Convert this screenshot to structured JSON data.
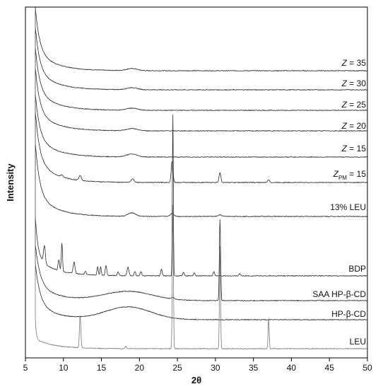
{
  "chart_data": {
    "type": "line",
    "xlabel": "2θ",
    "ylabel": "Intensity",
    "xlim": [
      5,
      50
    ],
    "x_ticks": [
      "5",
      "10",
      "15",
      "20",
      "25",
      "30",
      "35",
      "40",
      "45",
      "50"
    ],
    "y_ticks_shown": false,
    "grid": false,
    "style": {
      "axis_color": "#000000",
      "trace_color": "#2a2a2a",
      "leu_color": "#777777"
    },
    "series": [
      {
        "key": "z35",
        "name_prefix": "Z",
        "name_suffix": " = 35",
        "baseline": 98,
        "peaks": [
          [
            19.0,
            3,
            0.7
          ]
        ]
      },
      {
        "key": "z30",
        "name_prefix": "Z",
        "name_suffix": " = 30",
        "baseline": 98,
        "peaks": [
          [
            19.0,
            3,
            0.7
          ]
        ]
      },
      {
        "key": "z25",
        "name_prefix": "Z",
        "name_suffix": " = 25",
        "baseline": 98,
        "peaks": [
          [
            19.0,
            3,
            0.7
          ]
        ]
      },
      {
        "key": "z20",
        "name_prefix": "Z",
        "name_suffix": " = 20",
        "baseline": 98,
        "peaks": [
          [
            19.0,
            3,
            0.7
          ]
        ]
      },
      {
        "key": "z15",
        "name_prefix": "Z",
        "name_suffix": " = 15",
        "baseline": 98,
        "peaks": [
          [
            19.0,
            4,
            0.7
          ]
        ]
      },
      {
        "key": "zpm15",
        "name_prefix": "Z",
        "name_sub": "PM",
        "name_suffix": " = 15",
        "baseline": 90,
        "peaks": [
          [
            9.8,
            3,
            0.15
          ],
          [
            12.2,
            7,
            0.15
          ],
          [
            19.1,
            5,
            0.2
          ],
          [
            24.3,
            30,
            0.12
          ],
          [
            30.6,
            14,
            0.12
          ],
          [
            37.0,
            4,
            0.12
          ]
        ]
      },
      {
        "key": "leu13",
        "name_prefix": "",
        "name_suffix": "13% LEU",
        "baseline": 90,
        "peaks": [
          [
            19.0,
            5,
            0.5
          ],
          [
            24.3,
            4,
            0.25
          ],
          [
            30.6,
            2,
            0.25
          ]
        ]
      },
      {
        "key": "bdp",
        "name_prefix": "",
        "name_suffix": "BDP",
        "baseline": 95,
        "peaks": [
          [
            7.5,
            25,
            0.12
          ],
          [
            9.4,
            15,
            0.1
          ],
          [
            9.8,
            40,
            0.08
          ],
          [
            11.4,
            16,
            0.12
          ],
          [
            12.9,
            5,
            0.1
          ],
          [
            14.5,
            12,
            0.08
          ],
          [
            14.9,
            12,
            0.08
          ],
          [
            15.6,
            14,
            0.1
          ],
          [
            17.2,
            5,
            0.1
          ],
          [
            18.5,
            12,
            0.12
          ],
          [
            19.4,
            6,
            0.1
          ],
          [
            20.2,
            6,
            0.1
          ],
          [
            22.9,
            9,
            0.1
          ],
          [
            24.4,
            228,
            0.06
          ],
          [
            25.8,
            5,
            0.1
          ],
          [
            27.2,
            4,
            0.1
          ],
          [
            29.8,
            6,
            0.1
          ],
          [
            33.2,
            3,
            0.1
          ]
        ]
      },
      {
        "key": "saa",
        "name_prefix": "",
        "name_suffix": "SAA HP-β-CD",
        "baseline": 100,
        "peaks": [
          [
            18.5,
            13,
            3.2
          ],
          [
            30.6,
            115,
            0.08
          ],
          [
            24.4,
            2,
            0.2
          ]
        ]
      },
      {
        "key": "hpbcd",
        "name_prefix": "",
        "name_suffix": "HP-β-CD",
        "baseline": 100,
        "peaks": [
          [
            18.5,
            18,
            3.0
          ]
        ]
      },
      {
        "key": "leu",
        "name_prefix": "",
        "name_suffix": "LEU",
        "baseline": 12,
        "peaks": [
          [
            12.2,
            46,
            0.09
          ],
          [
            18.2,
            3,
            0.1
          ],
          [
            24.4,
            203,
            0.07
          ],
          [
            30.6,
            145,
            0.07
          ],
          [
            37.0,
            43,
            0.07
          ]
        ]
      }
    ]
  }
}
